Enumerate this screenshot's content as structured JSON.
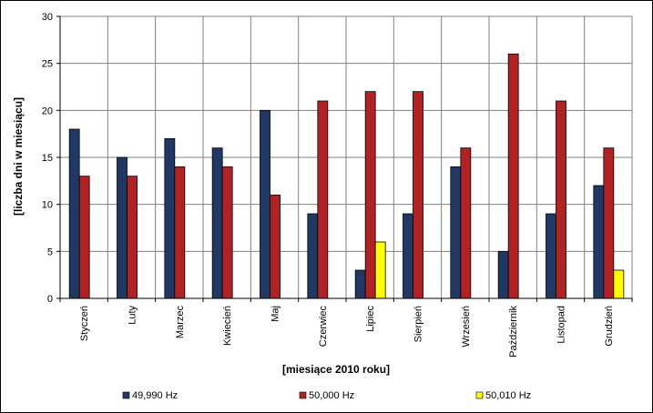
{
  "chart_data": {
    "type": "bar",
    "title": "",
    "xlabel": "[miesiące 2010 roku]",
    "ylabel": "[liczba dni w miesiącu]",
    "ylim": [
      0,
      30
    ],
    "yticks": [
      0,
      5,
      10,
      15,
      20,
      25,
      30
    ],
    "grid": true,
    "legend_position": "bottom",
    "categories": [
      "Styczeń",
      "Luty",
      "Marzec",
      "Kwiecień",
      "Maj",
      "Czerwiec",
      "Lipiec",
      "Sierpień",
      "Wrzesień",
      "Październik",
      "Listopad",
      "Grudzień"
    ],
    "series": [
      {
        "name": "49,990 Hz",
        "color": "#1F3864",
        "values": [
          18,
          15,
          17,
          16,
          20,
          9,
          3,
          9,
          14,
          5,
          9,
          12
        ]
      },
      {
        "name": "50,000 Hz",
        "color": "#B22222",
        "values": [
          13,
          13,
          14,
          14,
          11,
          21,
          22,
          22,
          16,
          26,
          21,
          16
        ]
      },
      {
        "name": "50,010 Hz",
        "color": "#FFFF00",
        "values": [
          0,
          0,
          0,
          0,
          0,
          0,
          6,
          0,
          0,
          0,
          0,
          3
        ]
      }
    ]
  }
}
